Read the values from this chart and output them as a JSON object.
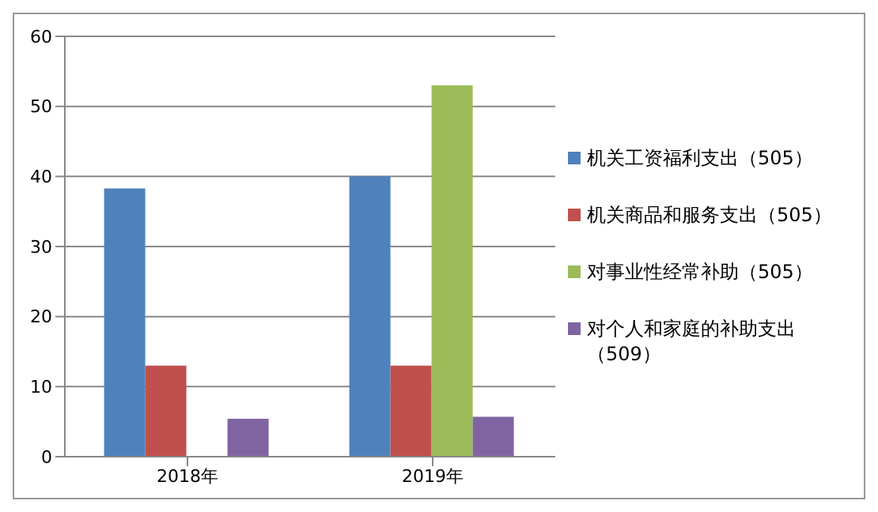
{
  "chart_data": {
    "type": "bar",
    "categories": [
      "2018年",
      "2019年"
    ],
    "series": [
      {
        "name": "机关工资福利支出（505）",
        "color": "#4f81bd",
        "values": [
          38.3,
          40
        ]
      },
      {
        "name": "机关商品和服务支出（505）",
        "color": "#c0504d",
        "values": [
          13,
          13
        ]
      },
      {
        "name": "对事业性经常补助（505）",
        "color": "#9bbb59",
        "values": [
          0,
          53
        ]
      },
      {
        "name": "对个人和家庭的补助支出（509）",
        "color": "#8064a2",
        "values": [
          5.4,
          5.7
        ]
      }
    ],
    "ylim": [
      0,
      60
    ],
    "yticks": [
      0,
      10,
      20,
      30,
      40,
      50,
      60
    ],
    "grid": "y",
    "legend": "right"
  }
}
